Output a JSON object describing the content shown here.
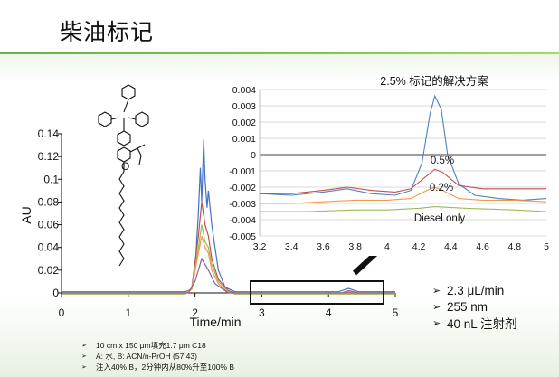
{
  "slide": {
    "title": "柴油标记",
    "specs": [
      "2.3 μL/min",
      "255 nm",
      "40 nL 注射剂"
    ],
    "conditions": [
      "10 cm x 150 μm填充1.7 μm C18",
      "A: 水, B: ACN/n-PrOH (57:43)",
      "注入40% B，2分钟内从80%升至100% B"
    ]
  },
  "chart_data": [
    {
      "type": "line",
      "id": "main",
      "xlabel": "Time/min",
      "ylabel": "AU",
      "xlim": [
        0,
        5
      ],
      "ylim": [
        0,
        0.14
      ],
      "xticks": [
        "0",
        "1",
        "2",
        "3",
        "4",
        "5"
      ],
      "yticks": [
        "0",
        "0.02",
        "0.04",
        "0.06",
        "0.08",
        "0.1",
        "0.12",
        "0.14"
      ],
      "grid": false,
      "series": [
        {
          "color": "#4472c4",
          "points": [
            [
              0,
              0.001
            ],
            [
              1.5,
              0.001
            ],
            [
              1.85,
              0.001
            ],
            [
              1.95,
              0.003
            ],
            [
              2.0,
              0.02
            ],
            [
              2.05,
              0.07
            ],
            [
              2.08,
              0.11
            ],
            [
              2.1,
              0.08
            ],
            [
              2.13,
              0.135
            ],
            [
              2.15,
              0.1
            ],
            [
              2.18,
              0.075
            ],
            [
              2.2,
              0.09
            ],
            [
              2.25,
              0.06
            ],
            [
              2.3,
              0.04
            ],
            [
              2.35,
              0.02
            ],
            [
              2.45,
              0.005
            ],
            [
              2.6,
              0.001
            ],
            [
              4.15,
              0.001
            ],
            [
              4.3,
              0.004
            ],
            [
              4.45,
              0.001
            ],
            [
              5,
              0.001
            ]
          ]
        },
        {
          "color": "#c0504d",
          "points": [
            [
              0,
              0.0
            ],
            [
              1.85,
              0.0
            ],
            [
              1.95,
              0.004
            ],
            [
              2.05,
              0.05
            ],
            [
              2.1,
              0.08
            ],
            [
              2.15,
              0.06
            ],
            [
              2.2,
              0.05
            ],
            [
              2.25,
              0.03
            ],
            [
              2.35,
              0.012
            ],
            [
              2.5,
              0.002
            ],
            [
              2.6,
              0.0
            ],
            [
              4.2,
              0.0
            ],
            [
              4.3,
              0.002
            ],
            [
              4.45,
              0.0
            ],
            [
              5,
              0.0
            ]
          ]
        },
        {
          "color": "#9bbb59",
          "points": [
            [
              0,
              -0.001
            ],
            [
              1.85,
              -0.001
            ],
            [
              1.95,
              0.003
            ],
            [
              2.05,
              0.04
            ],
            [
              2.1,
              0.06
            ],
            [
              2.15,
              0.045
            ],
            [
              2.2,
              0.04
            ],
            [
              2.25,
              0.025
            ],
            [
              2.35,
              0.01
            ],
            [
              2.5,
              0.001
            ],
            [
              2.6,
              -0.001
            ],
            [
              5,
              -0.001
            ]
          ]
        },
        {
          "color": "#f79646",
          "points": [
            [
              0,
              0.0
            ],
            [
              1.85,
              0.0
            ],
            [
              1.95,
              0.003
            ],
            [
              2.05,
              0.035
            ],
            [
              2.1,
              0.05
            ],
            [
              2.15,
              0.04
            ],
            [
              2.2,
              0.035
            ],
            [
              2.25,
              0.02
            ],
            [
              2.35,
              0.008
            ],
            [
              2.5,
              0.0
            ],
            [
              4.25,
              0.0
            ],
            [
              4.3,
              0.001
            ],
            [
              4.4,
              0.0
            ],
            [
              5,
              0.0
            ]
          ]
        },
        {
          "color": "#8064a2",
          "points": [
            [
              0,
              0.0
            ],
            [
              1.9,
              0.0
            ],
            [
              2.0,
              0.01
            ],
            [
              2.1,
              0.03
            ],
            [
              2.2,
              0.02
            ],
            [
              2.3,
              0.008
            ],
            [
              2.5,
              0.0
            ],
            [
              5,
              0.0
            ]
          ]
        }
      ]
    },
    {
      "type": "line",
      "id": "inset",
      "title": "2.5% 标记的解决方案",
      "xlim": [
        3.2,
        5
      ],
      "ylim": [
        -0.005,
        0.004
      ],
      "xticks": [
        "3.2",
        "3.4",
        "3.6",
        "3.8",
        "4",
        "4.2",
        "4.4",
        "4.6",
        "4.8",
        "5"
      ],
      "yticks": [
        "0.004",
        "0.003",
        "0.002",
        "0.001",
        "0",
        "-0.001",
        "-0.002",
        "-0.003",
        "-0.004",
        "-0.005"
      ],
      "grid": true,
      "annotations": [
        "0.5%",
        "0.2%",
        "Diesel only"
      ],
      "series": [
        {
          "color": "#4f81bd",
          "points": [
            [
              3.2,
              -0.0024
            ],
            [
              3.4,
              -0.0025
            ],
            [
              3.6,
              -0.0023
            ],
            [
              3.75,
              -0.0021
            ],
            [
              3.9,
              -0.0024
            ],
            [
              4.05,
              -0.0025
            ],
            [
              4.15,
              -0.0022
            ],
            [
              4.22,
              -0.0005
            ],
            [
              4.27,
              0.0025
            ],
            [
              4.3,
              0.0036
            ],
            [
              4.34,
              0.0028
            ],
            [
              4.38,
              0.0
            ],
            [
              4.45,
              -0.0018
            ],
            [
              4.55,
              -0.0025
            ],
            [
              4.7,
              -0.0027
            ],
            [
              4.85,
              -0.0028
            ],
            [
              5,
              -0.0027
            ]
          ]
        },
        {
          "color": "#c0504d",
          "points": [
            [
              3.2,
              -0.0024
            ],
            [
              3.4,
              -0.0024
            ],
            [
              3.6,
              -0.0022
            ],
            [
              3.75,
              -0.002
            ],
            [
              3.9,
              -0.0022
            ],
            [
              4.05,
              -0.0023
            ],
            [
              4.15,
              -0.0021
            ],
            [
              4.25,
              -0.0013
            ],
            [
              4.3,
              -0.0009
            ],
            [
              4.35,
              -0.0011
            ],
            [
              4.45,
              -0.0019
            ],
            [
              4.6,
              -0.0021
            ],
            [
              4.8,
              -0.0021
            ],
            [
              5,
              -0.0021
            ]
          ]
        },
        {
          "color": "#f79646",
          "points": [
            [
              3.2,
              -0.003
            ],
            [
              3.4,
              -0.003
            ],
            [
              3.6,
              -0.0029
            ],
            [
              3.8,
              -0.0028
            ],
            [
              4.0,
              -0.0028
            ],
            [
              4.15,
              -0.0027
            ],
            [
              4.25,
              -0.0022
            ],
            [
              4.3,
              -0.002
            ],
            [
              4.35,
              -0.0022
            ],
            [
              4.45,
              -0.0027
            ],
            [
              4.6,
              -0.0028
            ],
            [
              4.8,
              -0.0028
            ],
            [
              5,
              -0.0029
            ]
          ]
        },
        {
          "color": "#9bbb59",
          "points": [
            [
              3.2,
              -0.0035
            ],
            [
              3.5,
              -0.0035
            ],
            [
              3.8,
              -0.0034
            ],
            [
              4.0,
              -0.0034
            ],
            [
              4.2,
              -0.0033
            ],
            [
              4.3,
              -0.0032
            ],
            [
              4.5,
              -0.0033
            ],
            [
              4.8,
              -0.0034
            ],
            [
              5,
              -0.0035
            ]
          ]
        }
      ]
    }
  ]
}
